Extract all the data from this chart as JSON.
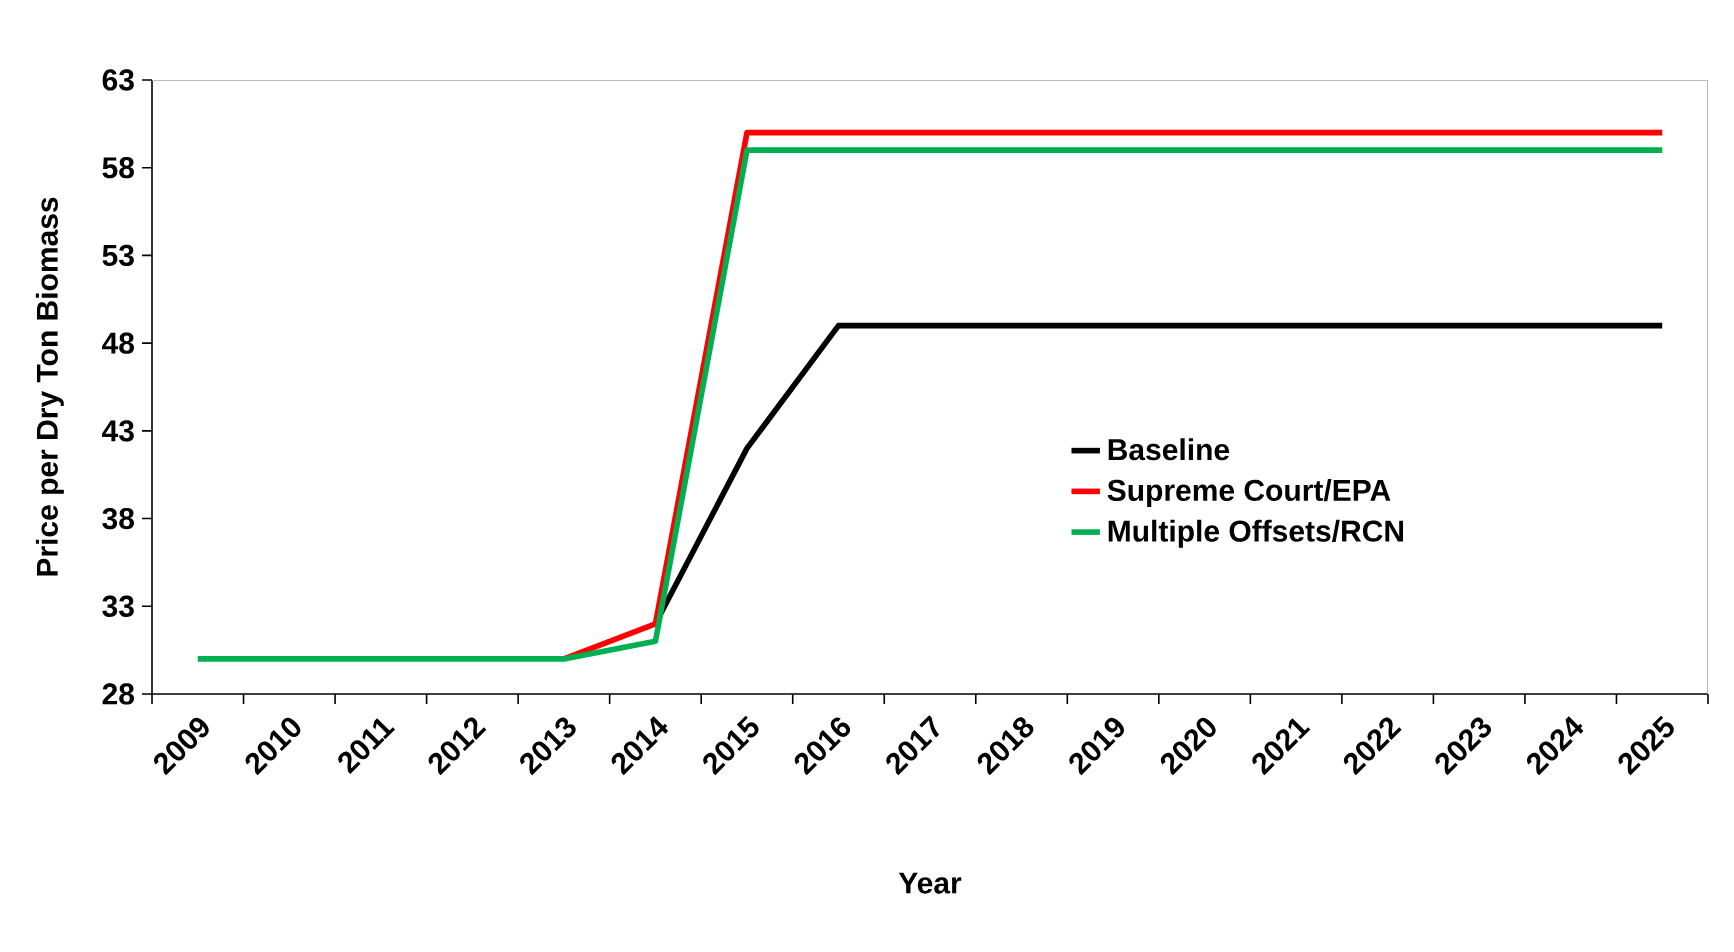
{
  "chart_data": {
    "type": "line",
    "xlabel": "Year",
    "ylabel": "Price per Dry Ton Biomass",
    "categories": [
      "2009",
      "2010",
      "2011",
      "2012",
      "2013",
      "2014",
      "2015",
      "2016",
      "2017",
      "2018",
      "2019",
      "2020",
      "2021",
      "2022",
      "2023",
      "2024",
      "2025"
    ],
    "series": [
      {
        "name": "Baseline",
        "color": "#000000",
        "values": [
          null,
          null,
          null,
          null,
          null,
          32,
          42,
          49,
          49,
          49,
          49,
          49,
          49,
          49,
          49,
          49,
          49
        ]
      },
      {
        "name": "Supreme Court/EPA",
        "color": "#ff0000",
        "values": [
          null,
          null,
          null,
          null,
          30,
          32,
          60,
          60,
          60,
          60,
          60,
          60,
          60,
          60,
          60,
          60,
          60
        ]
      },
      {
        "name": "Multiple Offsets/RCN",
        "color": "#00b050",
        "values": [
          30,
          30,
          30,
          30,
          30,
          31,
          59,
          59,
          59,
          59,
          59,
          59,
          59,
          59,
          59,
          59,
          59
        ]
      }
    ],
    "ylim": [
      28,
      63
    ],
    "yticks": [
      28,
      33,
      38,
      43,
      48,
      53,
      58,
      63
    ],
    "grid": false,
    "legend": "right",
    "marker": "none",
    "line_style": "solid"
  }
}
